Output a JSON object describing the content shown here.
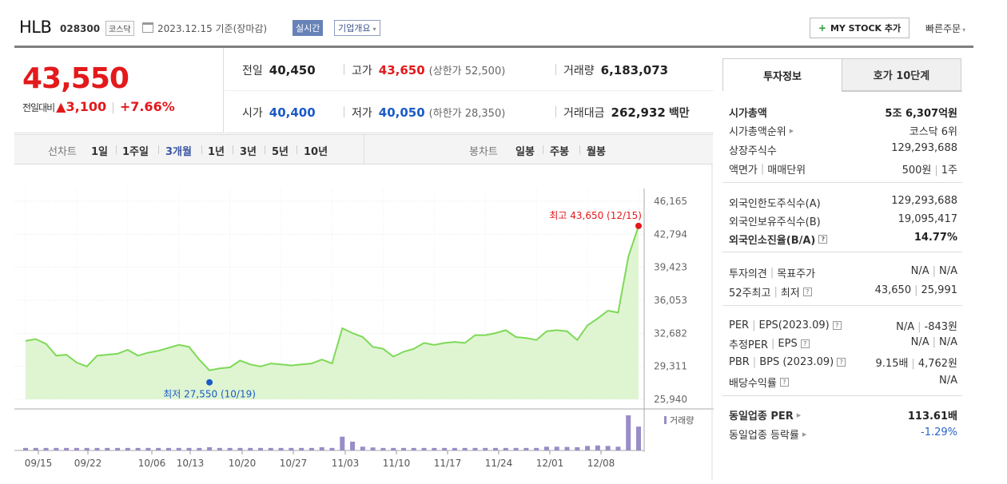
{
  "header": {
    "name": "HLB",
    "code": "028300",
    "market": "코스닥",
    "date": "2023.12.15 기준(장마감)",
    "live": "실시간",
    "overview": "기업개요",
    "mystock": "MY STOCK 추가",
    "quick_order": "빠른주문"
  },
  "price": {
    "now": "43,550",
    "change_label": "전일대비",
    "change_arrow": "▲",
    "change_value": "3,100",
    "change_pct": "+7.66%"
  },
  "quote": {
    "prev_label": "전일",
    "prev": "40,450",
    "high_label": "고가",
    "high": "43,650",
    "upper_limit": "(상한가 52,500)",
    "volume_label": "거래량",
    "volume": "6,183,073",
    "open_label": "시가",
    "open": "40,400",
    "low_label": "저가",
    "low": "40,050",
    "lower_limit": "(하한가 28,350)",
    "amount_label": "거래대금",
    "amount": "262,932",
    "amount_unit": "백만"
  },
  "periods": {
    "line_label": "선차트",
    "line_items": [
      "1일",
      "1주일",
      "3개월",
      "1년",
      "3년",
      "5년",
      "10년"
    ],
    "selected": "3개월",
    "candle_label": "봉차트",
    "candle_items": [
      "일봉",
      "주봉",
      "월봉"
    ]
  },
  "chart_data": {
    "type": "area",
    "title": "",
    "x_tick_labels": [
      "09/15",
      "09/22",
      "10/06",
      "10/13",
      "10/20",
      "10/27",
      "11/03",
      "11/10",
      "11/17",
      "11/24",
      "12/01",
      "12/08"
    ],
    "y_tick_labels": [
      "46,165",
      "42,794",
      "39,423",
      "36,053",
      "32,682",
      "29,311",
      "25,940"
    ],
    "ylim": [
      25940,
      46165
    ],
    "max_annotation": "최고 43,650 (12/15)",
    "min_annotation": "최저 27,550 (10/19)",
    "volume_legend": "거래량",
    "series": [
      {
        "values": [
          31900,
          32100,
          31600,
          30400,
          30500,
          29700,
          29300,
          30400,
          30500,
          30600,
          31000,
          30400,
          30700,
          30900,
          31200,
          31500,
          31300,
          30000,
          28900,
          29100,
          29200,
          29900,
          29500,
          29300,
          29600,
          29500,
          29400,
          29500,
          29600,
          30000,
          29600,
          33200,
          32700,
          32300,
          31300,
          31100,
          30300,
          30800,
          31100,
          31700,
          31500,
          31700,
          31800,
          31700,
          32500,
          32500,
          32700,
          33000,
          32300,
          32200,
          32000,
          32900,
          33000,
          32900,
          32000,
          33500,
          34200,
          35000,
          34800,
          40500,
          43650
        ]
      }
    ],
    "volume": [
      1,
      1,
      1,
      1,
      1,
      1,
      1,
      1,
      1,
      1,
      1,
      1,
      1,
      1,
      1,
      1,
      1,
      1,
      1.3,
      1,
      1,
      1,
      1,
      1,
      1,
      1,
      1,
      1,
      1,
      1.3,
      1,
      5.5,
      3.5,
      1.5,
      1.2,
      1,
      1,
      1,
      1,
      1,
      1,
      1,
      1,
      1,
      1,
      1,
      1,
      1,
      1,
      1,
      1,
      1.5,
      1.5,
      1.4,
      1.3,
      1.8,
      2,
      1.8,
      1.5,
      14,
      9.5
    ]
  },
  "side": {
    "tab_invest": "투자정보",
    "tab_ask": "호가 10단계",
    "rows": [
      {
        "k": "시가총액",
        "v": "5조 6,307억원"
      },
      {
        "k": "시가총액순위",
        "v": "코스닥 6위"
      },
      {
        "k": "상장주식수",
        "v": "129,293,688"
      },
      {
        "k1": "액면가",
        "k2": "매매단위",
        "v1": "500원",
        "v2": "1주"
      },
      {
        "k": "외국인한도주식수(A)",
        "v": "129,293,688"
      },
      {
        "k": "외국인보유주식수(B)",
        "v": "19,095,417"
      },
      {
        "k": "외국인소진율(B/A)",
        "v": "14.77%"
      },
      {
        "k1": "투자의견",
        "k2": "목표주가",
        "v1": "N/A",
        "v2": "N/A"
      },
      {
        "k1": "52주최고",
        "k2": "최저",
        "v1": "43,650",
        "v2": "25,991"
      },
      {
        "k1": "PER",
        "k2": "EPS(2023.09)",
        "v1": "N/A",
        "v2": "-843원"
      },
      {
        "k1": "추정PER",
        "k2": "EPS",
        "v1": "N/A",
        "v2": "N/A"
      },
      {
        "k1": "PBR",
        "k2": "BPS (2023.09)",
        "v1": "9.15배",
        "v2": "4,762원"
      },
      {
        "k": "배당수익률",
        "v": "N/A"
      },
      {
        "k": "동일업종 PER",
        "v": "113.61배"
      },
      {
        "k": "동일업종 등락률",
        "v": "-1.29%"
      }
    ]
  }
}
